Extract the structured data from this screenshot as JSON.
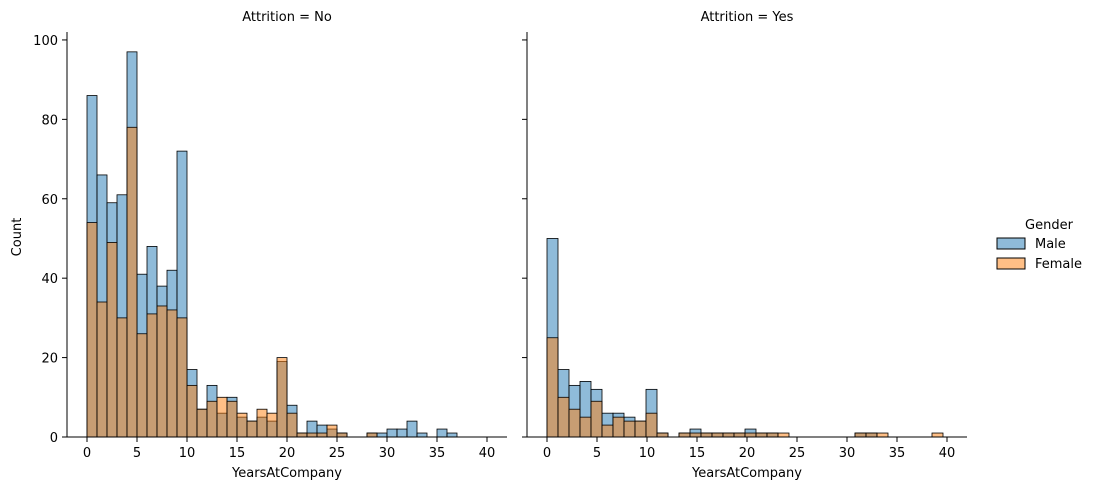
{
  "figure": {
    "y_axis_label": "Count",
    "legend_title": "Gender"
  },
  "chart_data": [
    {
      "type": "bar",
      "title": "Attrition = No",
      "xlabel": "YearsAtCompany",
      "ylabel": "Count",
      "xlim": [
        -2,
        42
      ],
      "ylim": [
        0,
        102
      ],
      "xticks": [
        0,
        5,
        10,
        15,
        20,
        25,
        30,
        35,
        40
      ],
      "yticks": [
        0,
        20,
        40,
        60,
        80,
        100
      ],
      "grid": false,
      "bin_width": 1,
      "bin_starts": [
        0,
        1,
        2,
        3,
        4,
        5,
        6,
        7,
        8,
        9,
        10,
        11,
        12,
        13,
        14,
        15,
        16,
        17,
        18,
        19,
        20,
        21,
        22,
        23,
        24,
        25,
        26,
        27,
        28,
        29,
        30,
        31,
        32,
        33,
        34,
        35,
        36,
        37,
        38,
        39
      ],
      "series": [
        {
          "name": "Male",
          "color": "#1f77b4",
          "values": [
            86,
            66,
            59,
            61,
            97,
            41,
            48,
            38,
            42,
            72,
            17,
            7,
            13,
            6,
            10,
            5,
            4,
            5,
            4,
            19,
            8,
            1,
            4,
            3,
            2,
            1,
            0,
            0,
            1,
            1,
            2,
            2,
            4,
            1,
            0,
            2,
            1,
            0,
            0,
            0
          ]
        },
        {
          "name": "Female",
          "color": "#ff7f0e",
          "values": [
            54,
            34,
            49,
            30,
            78,
            26,
            31,
            33,
            32,
            30,
            13,
            7,
            9,
            10,
            9,
            6,
            4,
            7,
            6,
            20,
            6,
            1,
            1,
            1,
            3,
            1,
            0,
            0,
            1,
            0,
            0,
            0,
            0,
            0,
            0,
            0,
            0,
            0,
            0,
            0
          ]
        }
      ]
    },
    {
      "type": "bar",
      "title": "Attrition = Yes",
      "xlabel": "YearsAtCompany",
      "xlim": [
        -2,
        42
      ],
      "ylim": [
        0,
        102
      ],
      "xticks": [
        0,
        5,
        10,
        15,
        20,
        25,
        30,
        35,
        40
      ],
      "grid": false,
      "bin_width": 1.1,
      "bin_starts": [
        0,
        1.1,
        2.2,
        3.3,
        4.4,
        5.5,
        6.6,
        7.7,
        8.8,
        9.9,
        11,
        12.1,
        13.2,
        14.3,
        15.4,
        16.5,
        17.6,
        18.7,
        19.8,
        20.9,
        22,
        23.1,
        24.2,
        25.3,
        26.4,
        27.5,
        28.6,
        29.7,
        30.8,
        31.9,
        33,
        34.1,
        35.2,
        36.3,
        37.4,
        38.5
      ],
      "series": [
        {
          "name": "Male",
          "color": "#1f77b4",
          "values": [
            50,
            17,
            13,
            14,
            12,
            6,
            6,
            5,
            4,
            12,
            1,
            0,
            1,
            2,
            1,
            1,
            1,
            1,
            2,
            1,
            1,
            0,
            0,
            0,
            0,
            0,
            0,
            0,
            1,
            1,
            0,
            0,
            0,
            0,
            0,
            0
          ]
        },
        {
          "name": "Female",
          "color": "#ff7f0e",
          "values": [
            25,
            10,
            7,
            5,
            9,
            3,
            5,
            4,
            4,
            6,
            1,
            0,
            1,
            1,
            1,
            1,
            1,
            1,
            1,
            1,
            1,
            1,
            0,
            0,
            0,
            0,
            0,
            0,
            1,
            1,
            1,
            0,
            0,
            0,
            0,
            1
          ]
        }
      ]
    }
  ],
  "legend": {
    "title": "Gender",
    "placement": "right",
    "items": [
      {
        "label": "Male",
        "color": "#1f77b4"
      },
      {
        "label": "Female",
        "color": "#ff7f0e"
      }
    ]
  }
}
